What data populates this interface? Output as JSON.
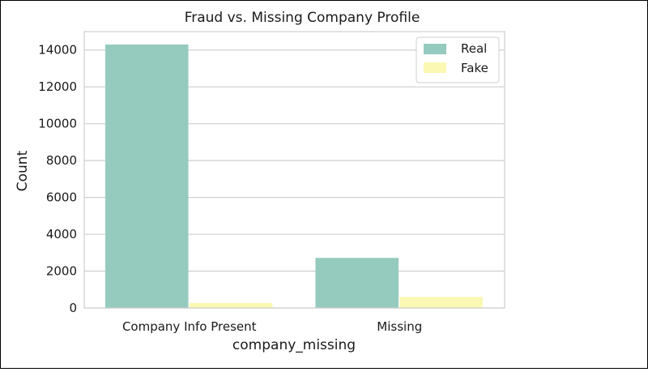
{
  "chart_data": {
    "type": "bar",
    "title": "Fraud vs. Missing Company Profile",
    "xlabel": "company_missing",
    "ylabel": "Count",
    "categories": [
      "Company Info Present",
      "Missing"
    ],
    "series": [
      {
        "name": "Real",
        "values": [
          14300,
          2720
        ],
        "color": "#95cbbf"
      },
      {
        "name": "Fake",
        "values": [
          270,
          600
        ],
        "color": "#fbf8b3"
      }
    ],
    "ylim": [
      0,
      15000
    ],
    "yticks": [
      0,
      2000,
      4000,
      6000,
      8000,
      10000,
      12000,
      14000
    ],
    "grid": true,
    "legend_position": "top-right"
  }
}
